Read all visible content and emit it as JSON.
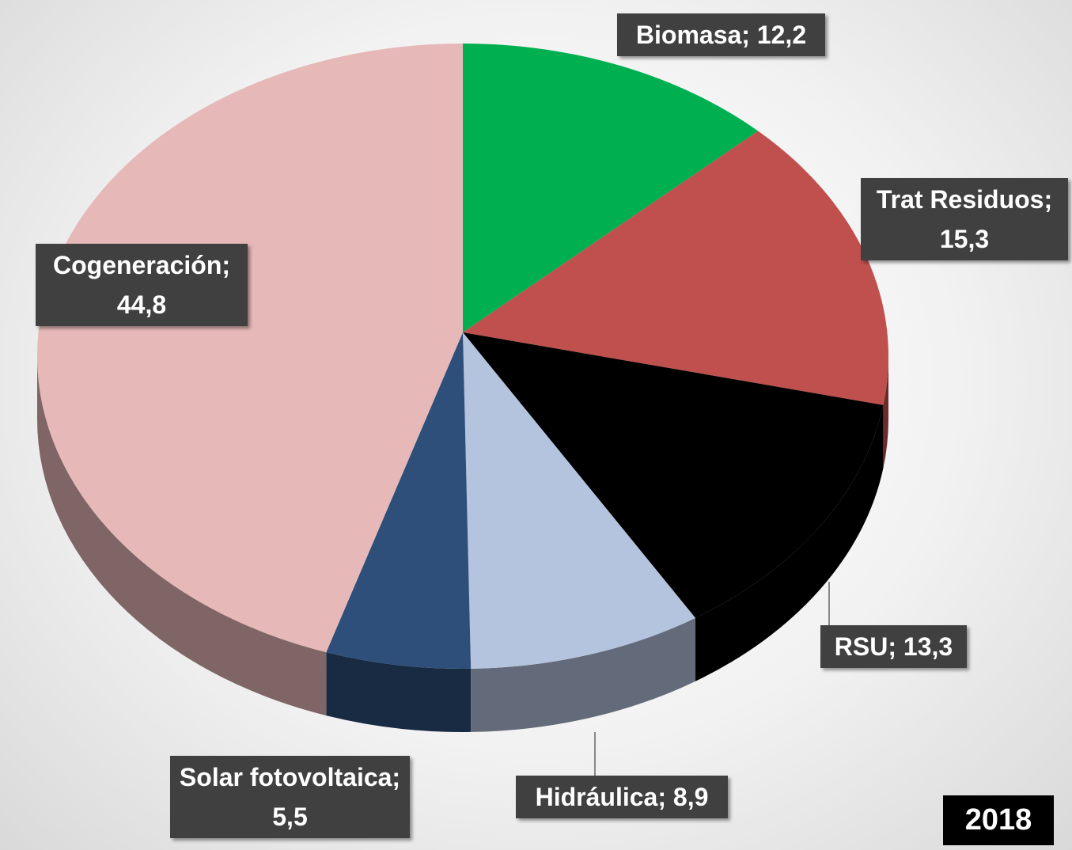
{
  "chart_data": {
    "type": "pie3d",
    "title": "2018",
    "values": [
      12.2,
      15.3,
      13.3,
      8.9,
      5.5,
      44.8
    ],
    "value_labels": [
      "Biomasa; 12,2",
      "Trat Residuos; 15,3",
      "RSU; 13,3",
      "Hidráulica; 8,9",
      "Solar fotovoltaica; 5,5",
      "Cogeneración; 44,8"
    ],
    "colors": [
      "#00b050",
      "#c0504d",
      "#000000",
      "#b4c3de",
      "#2e4f7a",
      "#e6b8b7"
    ]
  }
}
